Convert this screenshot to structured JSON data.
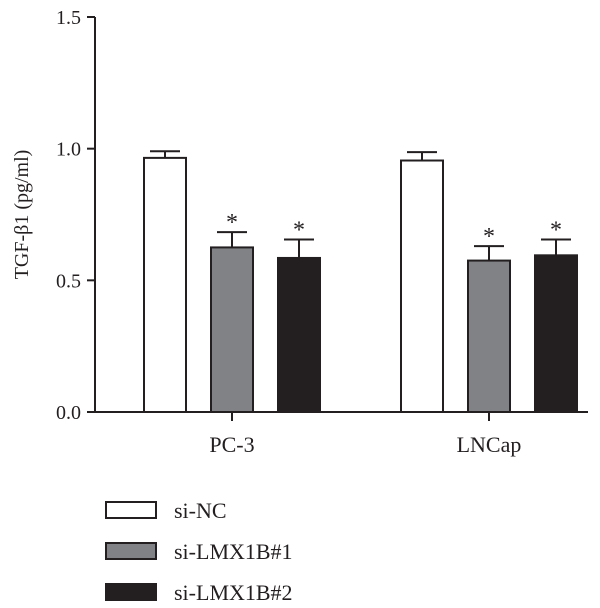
{
  "chart_data": {
    "type": "bar",
    "title": "",
    "ylabel": "TGF-β1 (pg/ml)",
    "xlabel": "",
    "ylim": [
      0,
      1.5
    ],
    "yticks": [
      0.0,
      0.5,
      1.0,
      1.5
    ],
    "ytick_labels": [
      "0.0",
      "0.5",
      "1.0",
      "1.5"
    ],
    "grid": false,
    "legend_position": "bottom-left",
    "categories": [
      "PC-3",
      "LNCap"
    ],
    "series": [
      {
        "name": "si-NC",
        "values": [
          0.965,
          0.955
        ],
        "errors": [
          0.025,
          0.032
        ],
        "significant": [
          false,
          false
        ],
        "color": "#ffffff"
      },
      {
        "name": "si-LMX1B#1",
        "values": [
          0.625,
          0.575
        ],
        "errors": [
          0.058,
          0.055
        ],
        "significant": [
          true,
          true
        ],
        "color": "#808285"
      },
      {
        "name": "si-LMX1B#2",
        "values": [
          0.585,
          0.595
        ],
        "errors": [
          0.07,
          0.06
        ],
        "significant": [
          true,
          true
        ],
        "color": "#231f20"
      }
    ],
    "significance_marker": "*"
  }
}
